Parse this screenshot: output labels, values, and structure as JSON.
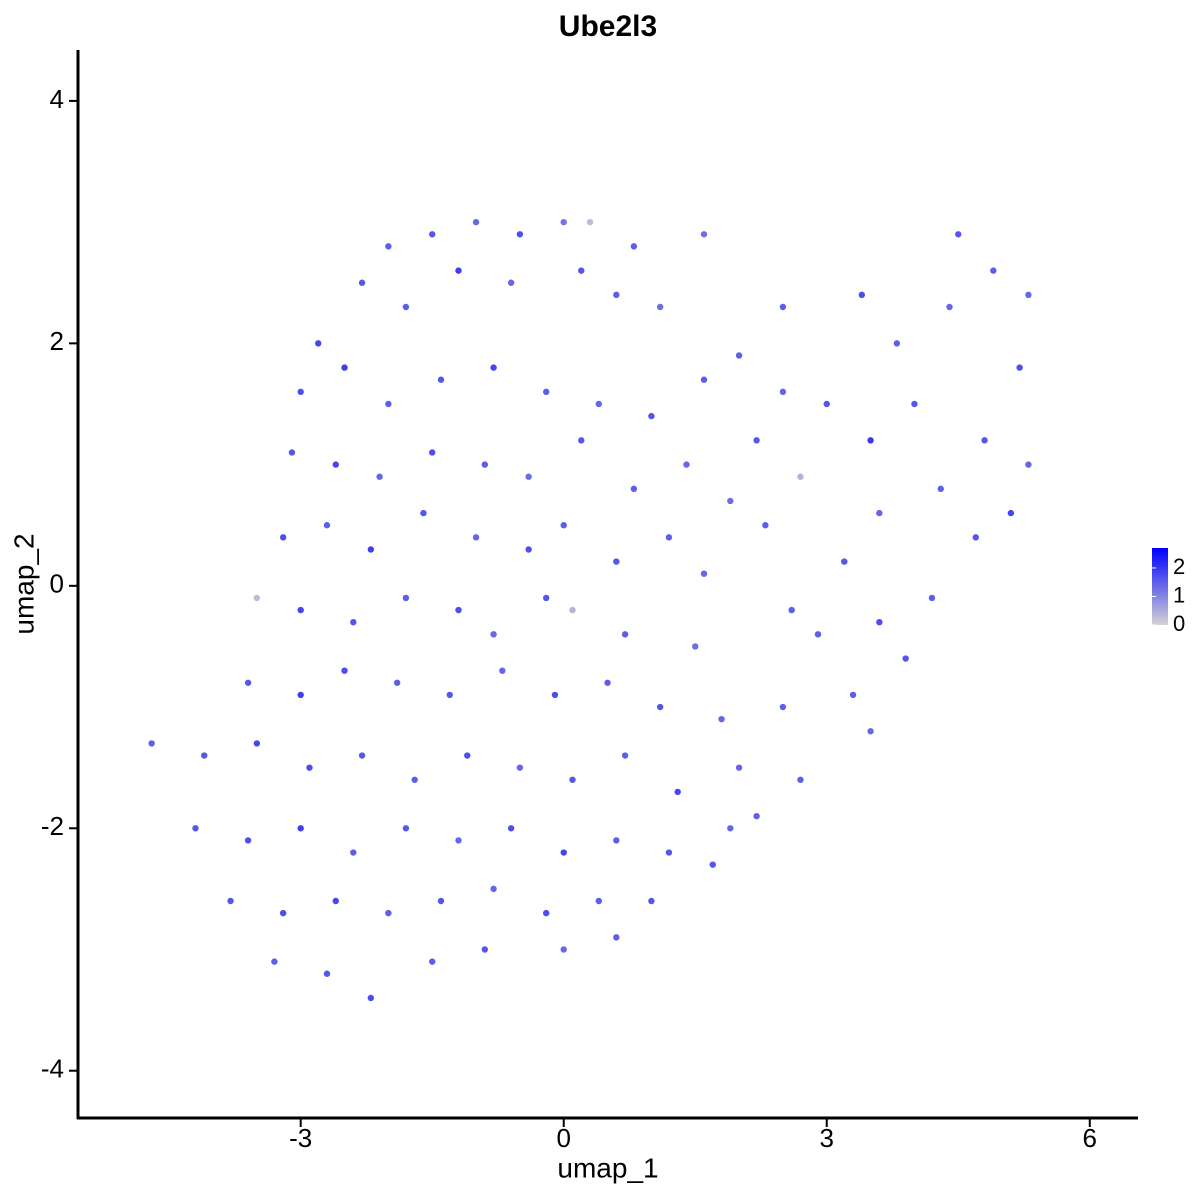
{
  "chart_data": {
    "type": "scatter",
    "title": "Ube2l3",
    "xlabel": "umap_1",
    "ylabel": "umap_2",
    "xlim": [
      -5.54,
      6.55
    ],
    "ylim": [
      -4.39,
      4.42
    ],
    "xticks": [
      -3,
      0,
      3,
      6
    ],
    "yticks": [
      -4,
      -2,
      0,
      2,
      4
    ],
    "color_low": "#d3d3d3",
    "color_high": "#0000ff",
    "clim": [
      0,
      2.7
    ],
    "cticks": [
      0,
      1,
      2
    ],
    "x": [
      -2.0,
      -1.5,
      -1.0,
      -0.5,
      0.0,
      0.3,
      0.8,
      1.6,
      -2.8,
      -2.3,
      -1.8,
      -1.2,
      -0.6,
      0.2,
      0.6,
      1.1,
      -3.0,
      -2.5,
      -2.0,
      -1.4,
      -0.8,
      -0.2,
      0.4,
      1.0,
      1.6,
      -3.1,
      -2.6,
      -2.1,
      -1.5,
      -0.9,
      -0.4,
      0.2,
      0.8,
      1.4,
      -3.2,
      -2.7,
      -2.2,
      -1.6,
      -1.0,
      -0.4,
      0.0,
      0.6,
      1.2,
      -3.5,
      -3.0,
      -2.4,
      -1.8,
      -1.2,
      -0.8,
      -0.2,
      0.1,
      0.7,
      1.5,
      -3.6,
      -3.0,
      -2.5,
      -1.9,
      -1.3,
      -0.7,
      -0.1,
      0.5,
      1.1,
      1.8,
      2.5,
      -4.7,
      -4.1,
      -3.5,
      -2.9,
      -2.3,
      -1.7,
      -1.1,
      -0.5,
      0.1,
      0.7,
      1.3,
      2.0,
      2.7,
      -4.2,
      -3.6,
      -3.0,
      -2.4,
      -1.8,
      -1.2,
      -0.6,
      0.0,
      0.6,
      1.2,
      1.9,
      -3.8,
      -3.2,
      -2.6,
      -2.0,
      -1.4,
      -0.8,
      -0.2,
      0.4,
      1.0,
      -3.3,
      -2.7,
      -2.2,
      -1.5,
      -0.9,
      0.0,
      0.6,
      2.0,
      2.5,
      2.2,
      1.9,
      2.3,
      2.7,
      3.0,
      3.4,
      3.8,
      3.5,
      4.0,
      4.4,
      4.5,
      4.9,
      5.3,
      5.2,
      4.8,
      4.3,
      3.6,
      3.2,
      2.9,
      3.6,
      4.2,
      4.7,
      5.1,
      5.3,
      3.9,
      3.3,
      3.5,
      2.2,
      1.7,
      2.6,
      1.6,
      2.5
    ],
    "y": [
      2.8,
      2.9,
      3.0,
      2.9,
      3.0,
      3.0,
      2.8,
      2.9,
      2.0,
      2.5,
      2.3,
      2.6,
      2.5,
      2.6,
      2.4,
      2.3,
      1.6,
      1.8,
      1.5,
      1.7,
      1.8,
      1.6,
      1.5,
      1.4,
      1.7,
      1.1,
      1.0,
      0.9,
      1.1,
      1.0,
      0.9,
      1.2,
      0.8,
      1.0,
      0.4,
      0.5,
      0.3,
      0.6,
      0.4,
      0.3,
      0.5,
      0.2,
      0.4,
      -0.1,
      -0.2,
      -0.3,
      -0.1,
      -0.2,
      -0.4,
      -0.1,
      -0.2,
      -0.4,
      -0.5,
      -0.8,
      -0.9,
      -0.7,
      -0.8,
      -0.9,
      -0.7,
      -0.9,
      -0.8,
      -1.0,
      -1.1,
      -1.0,
      -1.3,
      -1.4,
      -1.3,
      -1.5,
      -1.4,
      -1.6,
      -1.4,
      -1.5,
      -1.6,
      -1.4,
      -1.7,
      -1.5,
      -1.6,
      -2.0,
      -2.1,
      -2.0,
      -2.2,
      -2.0,
      -2.1,
      -2.0,
      -2.2,
      -2.1,
      -2.2,
      -2.0,
      -2.6,
      -2.7,
      -2.6,
      -2.7,
      -2.6,
      -2.5,
      -2.7,
      -2.6,
      -2.6,
      -3.1,
      -3.2,
      -3.4,
      -3.1,
      -3.0,
      -3.0,
      -2.9,
      1.9,
      1.6,
      1.2,
      0.7,
      0.5,
      0.9,
      1.5,
      2.4,
      2.0,
      1.2,
      1.5,
      2.3,
      2.9,
      2.6,
      2.4,
      1.8,
      1.2,
      0.8,
      0.6,
      0.2,
      -0.4,
      -0.3,
      -0.1,
      0.4,
      0.6,
      1.0,
      -0.6,
      -0.9,
      -1.2,
      -1.9,
      -2.3,
      -0.2,
      0.1,
      2.3
    ],
    "values": [
      1.5,
      1.6,
      1.4,
      1.7,
      1.2,
      0.3,
      1.5,
      1.3,
      1.8,
      1.6,
      1.5,
      1.9,
      1.4,
      1.6,
      1.5,
      1.3,
      1.7,
      1.9,
      1.5,
      1.6,
      1.8,
      1.5,
      1.4,
      1.6,
      1.5,
      1.6,
      1.8,
      1.4,
      1.7,
      1.5,
      1.3,
      1.6,
      1.5,
      1.4,
      1.7,
      1.5,
      1.9,
      1.6,
      1.4,
      1.7,
      1.5,
      1.6,
      1.5,
      0.3,
      1.8,
      1.6,
      1.5,
      1.7,
      1.4,
      1.6,
      0.4,
      1.5,
      1.3,
      1.6,
      1.9,
      1.7,
      1.5,
      1.6,
      1.4,
      1.7,
      1.5,
      1.6,
      1.4,
      1.5,
      1.5,
      1.6,
      1.8,
      1.7,
      1.6,
      1.5,
      1.7,
      1.4,
      1.6,
      1.5,
      1.8,
      1.4,
      1.5,
      1.6,
      1.7,
      1.9,
      1.5,
      1.6,
      1.4,
      1.7,
      1.8,
      1.5,
      1.6,
      1.4,
      1.6,
      1.7,
      1.8,
      1.5,
      1.6,
      1.4,
      1.7,
      1.5,
      1.6,
      1.5,
      1.6,
      1.7,
      1.5,
      1.6,
      1.4,
      1.5,
      1.5,
      1.4,
      1.6,
      1.3,
      1.5,
      0.4,
      1.6,
      1.7,
      1.5,
      2.0,
      1.6,
      1.4,
      1.6,
      1.5,
      1.4,
      1.7,
      1.6,
      1.5,
      1.4,
      1.6,
      1.5,
      1.7,
      1.5,
      1.6,
      1.8,
      1.4,
      1.6,
      1.5,
      1.4,
      1.5,
      1.6,
      1.5,
      1.4,
      1.5
    ]
  }
}
